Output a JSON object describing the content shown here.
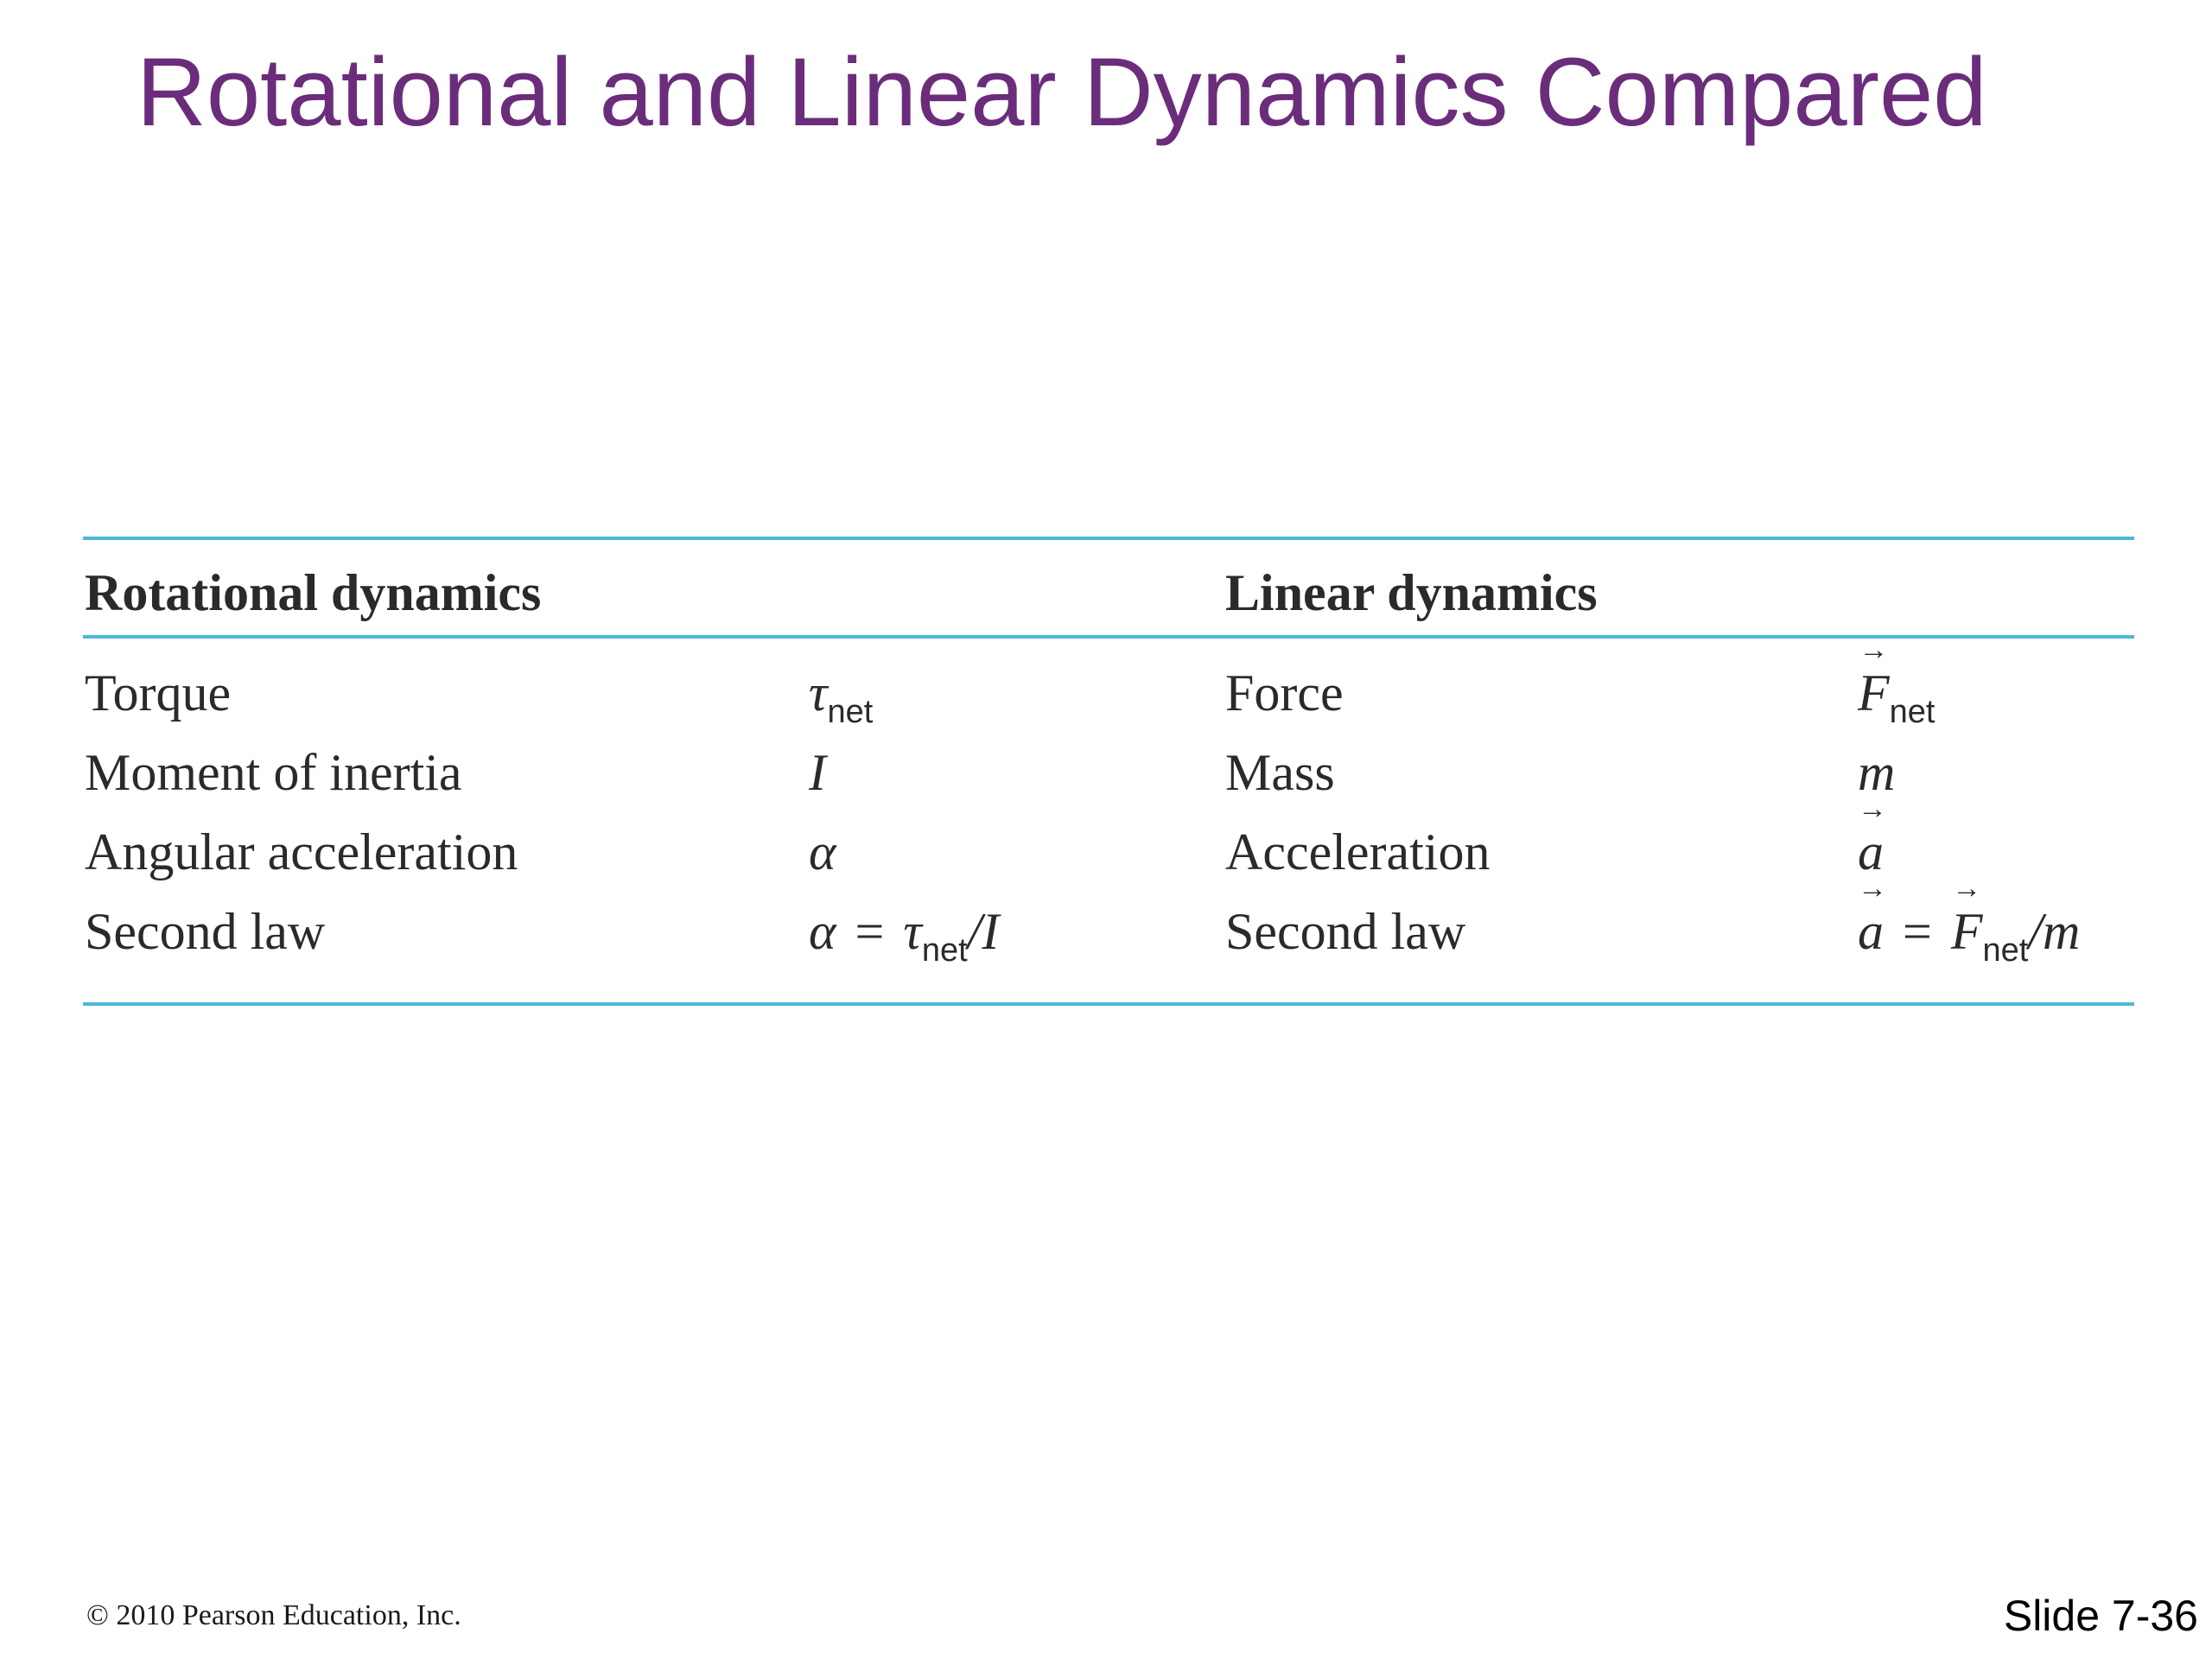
{
  "slide": {
    "title": "Rotational and Linear Dynamics Compared",
    "copyright": "© 2010 Pearson Education, Inc.",
    "slide_number": "Slide 7-36"
  },
  "colors": {
    "title": "#6b2d7b",
    "rules": "#4db8d9",
    "text": "#2a2a2a"
  },
  "table": {
    "headers": {
      "rotational": "Rotational dynamics",
      "linear": "Linear dynamics"
    },
    "rows": [
      {
        "rot_name": "Torque",
        "rot_sym": {
          "main": "τ",
          "sub": "net"
        },
        "lin_name": "Force",
        "lin_sym": {
          "main": "F",
          "sub": "net",
          "arrow": "→"
        }
      },
      {
        "rot_name": "Moment of inertia",
        "rot_sym": {
          "main": "I"
        },
        "lin_name": "Mass",
        "lin_sym": {
          "main": "m"
        }
      },
      {
        "rot_name": "Angular acceleration",
        "rot_sym": {
          "main": "α"
        },
        "lin_name": "Acceleration",
        "lin_sym": {
          "main": "a",
          "arrow": "→"
        }
      },
      {
        "rot_name": "Second law",
        "rot_sym": {
          "lhs": "α",
          "eq": "=",
          "tau": "τ",
          "sub": "net",
          "rest": "/I"
        },
        "lin_name": "Second law",
        "lin_sym": {
          "lhs": "a",
          "arrow": "→",
          "eq": "=",
          "f": "F",
          "sub": "net",
          "rest": "/m"
        }
      }
    ]
  }
}
